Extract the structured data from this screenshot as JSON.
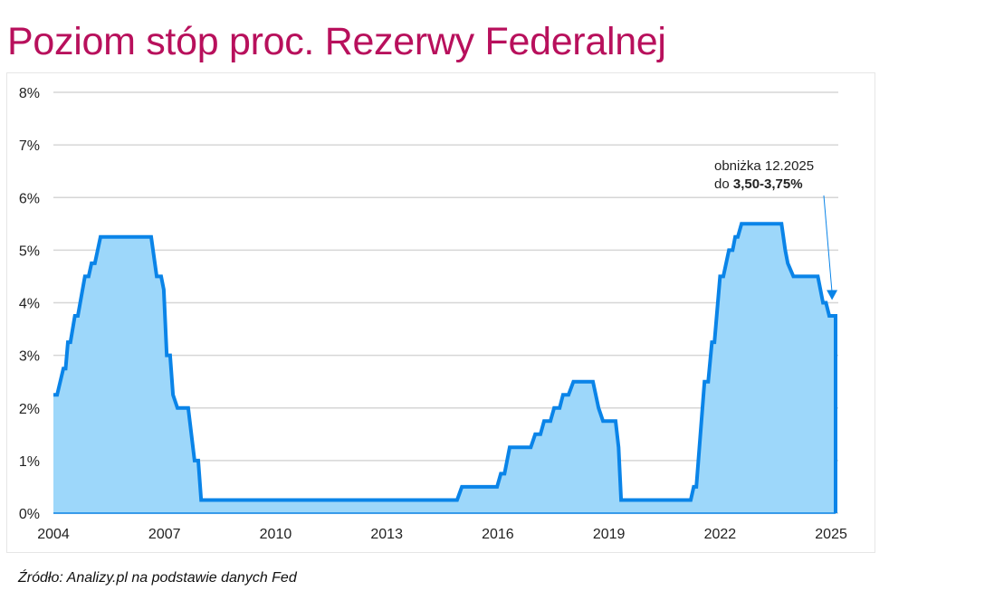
{
  "title": "Poziom stóp proc. Rezerwy Federalnej",
  "source": "Źródło: Analizy.pl na podstawie danych Fed",
  "chart_data": {
    "type": "area",
    "title": "Poziom stóp proc. Rezerwy Federalnej",
    "xlabel": "",
    "ylabel": "",
    "xlim": [
      2004,
      2025.12
    ],
    "ylim": [
      0,
      8
    ],
    "grid": true,
    "x_ticks": [
      "2004",
      "2007",
      "2010",
      "2013",
      "2016",
      "2019",
      "2022",
      "2025"
    ],
    "y_ticks": [
      "0%",
      "1%",
      "2%",
      "3%",
      "4%",
      "5%",
      "6%",
      "7%",
      "8%"
    ],
    "colors": {
      "line": "#0a84e8",
      "fill": "#9dd7fa",
      "title": "#b8105c",
      "grid": "#d6d6d6"
    },
    "annotation": {
      "line1": "obniżka 12.2025",
      "line2_prefix": "do ",
      "line2_bold": "3,50-3,75%",
      "target": [
        2025.0,
        4.0
      ]
    },
    "series": [
      {
        "points": [
          [
            2004.0,
            2.25
          ],
          [
            2004.1,
            2.25
          ],
          [
            2004.27,
            2.75
          ],
          [
            2004.33,
            2.75
          ],
          [
            2004.39,
            3.25
          ],
          [
            2004.46,
            3.25
          ],
          [
            2004.58,
            3.75
          ],
          [
            2004.66,
            3.75
          ],
          [
            2004.85,
            4.5
          ],
          [
            2004.95,
            4.5
          ],
          [
            2005.03,
            4.75
          ],
          [
            2005.12,
            4.75
          ],
          [
            2005.27,
            5.25
          ],
          [
            2006.64,
            5.25
          ],
          [
            2006.79,
            4.5
          ],
          [
            2006.91,
            4.5
          ],
          [
            2006.98,
            4.25
          ],
          [
            2007.06,
            3.0
          ],
          [
            2007.15,
            3.0
          ],
          [
            2007.23,
            2.25
          ],
          [
            2007.35,
            2.0
          ],
          [
            2007.64,
            2.0
          ],
          [
            2007.81,
            1.0
          ],
          [
            2007.91,
            1.0
          ],
          [
            2007.99,
            0.25
          ],
          [
            2014.9,
            0.25
          ],
          [
            2015.03,
            0.5
          ],
          [
            2015.98,
            0.5
          ],
          [
            2016.08,
            0.75
          ],
          [
            2016.18,
            0.75
          ],
          [
            2016.32,
            1.25
          ],
          [
            2016.89,
            1.25
          ],
          [
            2017.01,
            1.5
          ],
          [
            2017.15,
            1.5
          ],
          [
            2017.25,
            1.75
          ],
          [
            2017.42,
            1.75
          ],
          [
            2017.52,
            2.0
          ],
          [
            2017.67,
            2.0
          ],
          [
            2017.76,
            2.25
          ],
          [
            2017.91,
            2.25
          ],
          [
            2018.04,
            2.5
          ],
          [
            2018.57,
            2.5
          ],
          [
            2018.72,
            2.0
          ],
          [
            2018.84,
            1.75
          ],
          [
            2019.18,
            1.75
          ],
          [
            2019.26,
            1.25
          ],
          [
            2019.33,
            0.25
          ],
          [
            2021.21,
            0.25
          ],
          [
            2021.29,
            0.5
          ],
          [
            2021.36,
            0.5
          ],
          [
            2021.58,
            2.5
          ],
          [
            2021.68,
            2.5
          ],
          [
            2021.78,
            3.25
          ],
          [
            2021.85,
            3.25
          ],
          [
            2022.0,
            4.5
          ],
          [
            2022.09,
            4.5
          ],
          [
            2022.24,
            5.0
          ],
          [
            2022.34,
            5.0
          ],
          [
            2022.41,
            5.25
          ],
          [
            2022.48,
            5.25
          ],
          [
            2022.58,
            5.5
          ],
          [
            2023.66,
            5.5
          ],
          [
            2023.76,
            5.0
          ],
          [
            2023.83,
            4.75
          ],
          [
            2023.98,
            4.5
          ],
          [
            2024.64,
            4.5
          ],
          [
            2024.78,
            4.0
          ],
          [
            2024.86,
            4.0
          ],
          [
            2024.95,
            3.75
          ],
          [
            2025.12,
            3.75
          ]
        ]
      }
    ]
  }
}
